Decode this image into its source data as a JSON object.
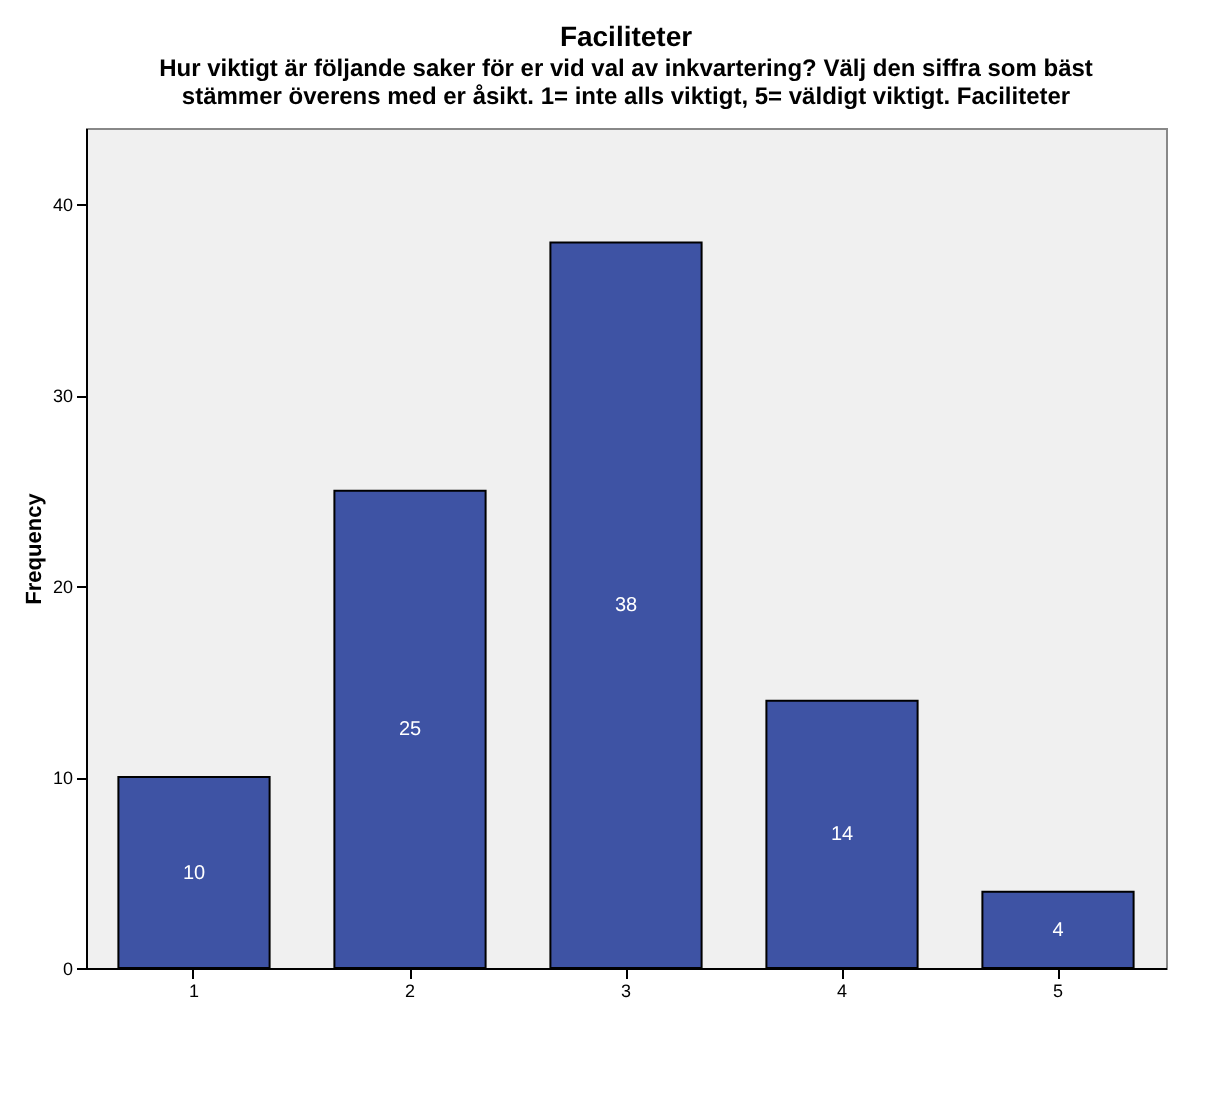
{
  "chart_data": {
    "type": "bar",
    "title": "Faciliteter",
    "subtitle": [
      "Hur viktigt är följande saker för er vid val av inkvartering? Välj den siffra som bäst",
      "stämmer överens med er åsikt. 1= inte alls viktigt, 5= väldigt viktigt. Faciliteter"
    ],
    "ylabel": "Frequency",
    "categories": [
      "1",
      "2",
      "3",
      "4",
      "5"
    ],
    "values": [
      10,
      25,
      38,
      14,
      4
    ],
    "color": "#3e53a4",
    "ylim": [
      0,
      44
    ],
    "yticks": [
      0,
      10,
      20,
      30,
      40
    ],
    "data_labels": true,
    "grid": false
  }
}
